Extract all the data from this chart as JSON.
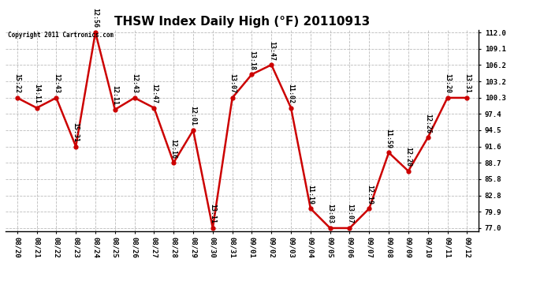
{
  "title": "THSW Index Daily High (°F) 20110913",
  "copyright": "Copyright 2011 Cartronics.com",
  "dates": [
    "08/20",
    "08/21",
    "08/22",
    "08/23",
    "08/24",
    "08/25",
    "08/26",
    "08/27",
    "08/28",
    "08/29",
    "08/30",
    "08/31",
    "09/01",
    "09/02",
    "09/03",
    "09/04",
    "09/05",
    "09/06",
    "09/07",
    "09/08",
    "09/09",
    "09/10",
    "09/11",
    "09/12"
  ],
  "values": [
    100.3,
    98.5,
    100.3,
    91.6,
    112.0,
    98.2,
    100.3,
    98.5,
    88.7,
    94.5,
    77.0,
    100.3,
    104.5,
    106.2,
    98.5,
    80.5,
    77.0,
    77.0,
    80.5,
    90.5,
    87.2,
    93.2,
    100.3,
    100.3
  ],
  "labels": [
    "15:22",
    "14:11",
    "12:43",
    "15:31",
    "12:56",
    "12:11",
    "12:43",
    "12:47",
    "12:16",
    "12:01",
    "13:11",
    "13:07",
    "13:18",
    "13:47",
    "11:02",
    "11:19",
    "13:03",
    "13:07",
    "12:19",
    "11:59",
    "12:20",
    "12:26",
    "13:20",
    "13:31"
  ],
  "ylim_min": 77.0,
  "ylim_max": 112.0,
  "yticks": [
    77.0,
    79.9,
    82.8,
    85.8,
    88.7,
    91.6,
    94.5,
    97.4,
    100.3,
    103.2,
    106.2,
    109.1,
    112.0
  ],
  "line_color": "#cc0000",
  "marker_color": "#cc0000",
  "bg_color": "#ffffff",
  "grid_color": "#bbbbbb",
  "title_fontsize": 11,
  "label_fontsize": 6.0,
  "tick_fontsize": 6.5,
  "copyright_fontsize": 5.5,
  "figwidth": 6.9,
  "figheight": 3.75,
  "dpi": 100
}
